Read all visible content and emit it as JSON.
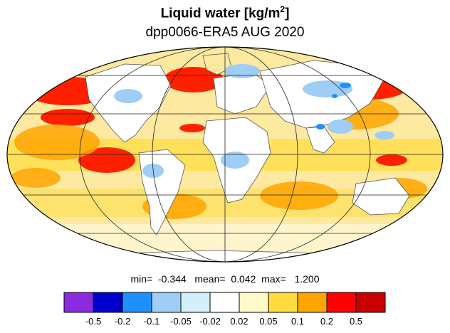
{
  "title": {
    "main": "Liquid water  [kg/m",
    "sup": "2",
    "close": "]",
    "subtitle": "dpp0066-ERA5 AUG 2020"
  },
  "stats": {
    "min_label": "min=",
    "min_value": "-0.344",
    "mean_label": "mean=",
    "mean_value": "0.042",
    "max_label": "max=",
    "max_value": "1.200"
  },
  "colorbar": {
    "colors": [
      "#8a2be2",
      "#0000cd",
      "#1e90ff",
      "#a0cdf5",
      "#d2f0fa",
      "#ffffff",
      "#fffac8",
      "#ffdc3c",
      "#ffa500",
      "#ff0000",
      "#c80000"
    ],
    "labels": [
      "-0.5",
      "-0.2",
      "-0.1",
      "-0.05",
      "-0.02",
      "0.02",
      "0.05",
      "0.1",
      "0.2",
      "0.5"
    ]
  },
  "map": {
    "projection": "Mollweide",
    "ocean_fill": "#fde9a0",
    "positive_color": "#ff0000",
    "negative_color": "#a0cdf5"
  }
}
